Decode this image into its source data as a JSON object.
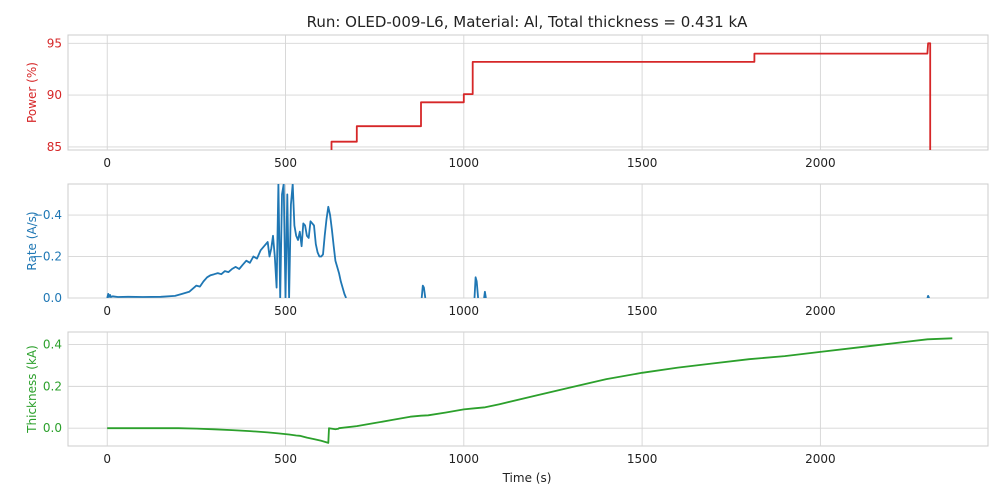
{
  "title": "Run: OLED-009-L6, Material: Al, Total thickness = 0.431 kA",
  "xlabel": "Time (s)",
  "chart_data": [
    {
      "type": "line",
      "ylabel": "Power (%)",
      "color": "#d62728",
      "xlim": [
        -110,
        2470
      ],
      "ylim": [
        84.7,
        95.8
      ],
      "xticks": [
        0,
        500,
        1000,
        1500,
        2000
      ],
      "yticks": [
        85,
        90,
        95
      ],
      "ytick_labels": [
        "85",
        "90",
        "95"
      ],
      "grid": true,
      "x": [
        629,
        629,
        700,
        700,
        880,
        880,
        1000,
        1000,
        1025,
        1025,
        1815,
        1815,
        2300,
        2302,
        2308,
        2308
      ],
      "y": [
        84.7,
        85.5,
        85.5,
        87.0,
        87.0,
        89.3,
        89.3,
        90.1,
        90.1,
        93.2,
        93.2,
        94.0,
        94.0,
        95.0,
        95.0,
        84.7
      ]
    },
    {
      "type": "line",
      "ylabel": "Rate (A/s)",
      "color": "#1f77b4",
      "xlim": [
        -110,
        2470
      ],
      "ylim": [
        0.0,
        -0.55
      ],
      "xticks": [
        0,
        500,
        1000,
        1500,
        2000
      ],
      "yticks": [
        0.0,
        -0.2,
        -0.4
      ],
      "ytick_labels": [
        "0.0",
        "−0.2",
        "−0.4"
      ],
      "grid": true,
      "segments": [
        {
          "x": [
            0,
            3,
            5,
            8,
            10,
            15,
            30,
            60,
            100,
            150,
            190,
            210,
            230,
            250,
            260,
            270,
            280,
            290,
            300,
            310,
            320,
            330,
            340,
            350,
            360,
            370,
            380,
            390,
            400,
            410,
            420,
            430,
            440,
            450,
            455,
            460,
            465,
            470,
            475,
            480,
            485,
            490,
            495,
            500,
            505,
            510,
            515,
            520,
            525,
            530,
            535,
            540,
            545,
            550,
            555,
            560,
            565,
            570,
            575,
            580,
            585,
            590,
            595,
            600,
            605,
            610,
            615,
            620,
            625,
            630,
            635,
            640,
            645,
            650,
            655,
            660,
            665,
            670
          ],
          "y": [
            0.0,
            -0.02,
            -0.005,
            -0.015,
            -0.005,
            -0.008,
            -0.005,
            -0.006,
            -0.005,
            -0.006,
            -0.01,
            -0.02,
            -0.03,
            -0.06,
            -0.055,
            -0.08,
            -0.1,
            -0.11,
            -0.115,
            -0.12,
            -0.115,
            -0.13,
            -0.125,
            -0.14,
            -0.15,
            -0.14,
            -0.16,
            -0.18,
            -0.17,
            -0.2,
            -0.19,
            -0.23,
            -0.25,
            -0.27,
            -0.2,
            -0.24,
            -0.3,
            -0.2,
            -0.05,
            -0.55,
            -0.0,
            -0.5,
            -0.55,
            -0.0,
            -0.5,
            -0.0,
            -0.45,
            -0.55,
            -0.35,
            -0.3,
            -0.28,
            -0.32,
            -0.25,
            -0.36,
            -0.35,
            -0.3,
            -0.29,
            -0.37,
            -0.36,
            -0.35,
            -0.26,
            -0.22,
            -0.2,
            -0.2,
            -0.21,
            -0.3,
            -0.38,
            -0.44,
            -0.4,
            -0.33,
            -0.25,
            -0.18,
            -0.15,
            -0.12,
            -0.08,
            -0.05,
            -0.02,
            0.0
          ]
        },
        {
          "x": [
            882,
            885,
            888,
            892
          ],
          "y": [
            0.0,
            -0.06,
            -0.05,
            0.0
          ]
        },
        {
          "x": [
            1030,
            1033,
            1036,
            1040
          ],
          "y": [
            0.0,
            -0.1,
            -0.08,
            0.0
          ]
        },
        {
          "x": [
            1057,
            1059,
            1062
          ],
          "y": [
            0.0,
            -0.03,
            0.0
          ]
        },
        {
          "x": [
            2300,
            2302,
            2305
          ],
          "y": [
            0.0,
            -0.01,
            0.0
          ]
        }
      ]
    },
    {
      "type": "line",
      "ylabel": "Thickness (kA)",
      "color": "#2ca02c",
      "xlim": [
        -110,
        2470
      ],
      "ylim": [
        -0.085,
        0.46
      ],
      "xticks": [
        0,
        500,
        1000,
        1500,
        2000
      ],
      "yticks": [
        0.0,
        0.2,
        0.4
      ],
      "ytick_labels": [
        "0.0",
        "0.2",
        "0.4"
      ],
      "grid": true,
      "x": [
        0,
        200,
        250,
        300,
        350,
        400,
        450,
        480,
        500,
        510,
        530,
        540,
        560,
        580,
        600,
        620,
        622,
        640,
        648,
        650,
        700,
        750,
        800,
        850,
        880,
        900,
        950,
        1000,
        1030,
        1060,
        1100,
        1200,
        1300,
        1400,
        1500,
        1600,
        1700,
        1800,
        1900,
        2000,
        2100,
        2200,
        2300,
        2370
      ],
      "y": [
        0.0,
        0.0,
        -0.002,
        -0.005,
        -0.009,
        -0.014,
        -0.02,
        -0.025,
        -0.028,
        -0.03,
        -0.035,
        -0.036,
        -0.045,
        -0.052,
        -0.06,
        -0.07,
        0.0,
        -0.005,
        -0.003,
        0.0,
        0.01,
        0.025,
        0.04,
        0.055,
        0.06,
        0.062,
        0.075,
        0.09,
        0.095,
        0.1,
        0.115,
        0.155,
        0.195,
        0.235,
        0.265,
        0.29,
        0.31,
        0.33,
        0.345,
        0.365,
        0.385,
        0.405,
        0.425,
        0.43
      ]
    }
  ]
}
